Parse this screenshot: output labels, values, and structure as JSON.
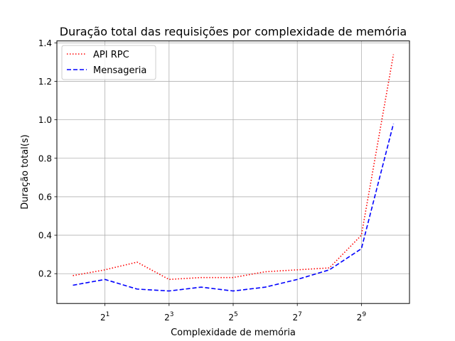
{
  "chart_data": {
    "type": "line",
    "title": "Duração total das requisições por complexidade de memória",
    "xlabel": "Complexidade de memória",
    "ylabel": "Duração total(s)",
    "x_scale": "log2",
    "x": [
      0,
      1,
      2,
      3,
      4,
      5,
      6,
      7,
      8,
      9,
      10
    ],
    "xlim": [
      -0.5,
      10.5
    ],
    "ylim": [
      0.045,
      1.41
    ],
    "x_ticks": [
      {
        "value": 1,
        "base": "2",
        "exp": "1"
      },
      {
        "value": 3,
        "base": "2",
        "exp": "3"
      },
      {
        "value": 5,
        "base": "2",
        "exp": "5"
      },
      {
        "value": 7,
        "base": "2",
        "exp": "7"
      },
      {
        "value": 9,
        "base": "2",
        "exp": "9"
      }
    ],
    "y_ticks": [
      0.2,
      0.4,
      0.6,
      0.8,
      1.0,
      1.2,
      1.4
    ],
    "y_tick_labels": [
      "0.2",
      "0.4",
      "0.6",
      "0.8",
      "1.0",
      "1.2",
      "1.4"
    ],
    "grid": true,
    "legend": "top-left",
    "series": [
      {
        "name": "API RPC",
        "values": [
          0.19,
          0.22,
          0.26,
          0.17,
          0.18,
          0.18,
          0.21,
          0.22,
          0.23,
          0.4,
          1.34
        ],
        "color": "#ff0000",
        "style": "dotted"
      },
      {
        "name": "Mensageria",
        "values": [
          0.14,
          0.17,
          0.12,
          0.11,
          0.13,
          0.11,
          0.13,
          0.17,
          0.22,
          0.33,
          0.98
        ],
        "color": "#0000ff",
        "style": "dashed"
      }
    ]
  }
}
